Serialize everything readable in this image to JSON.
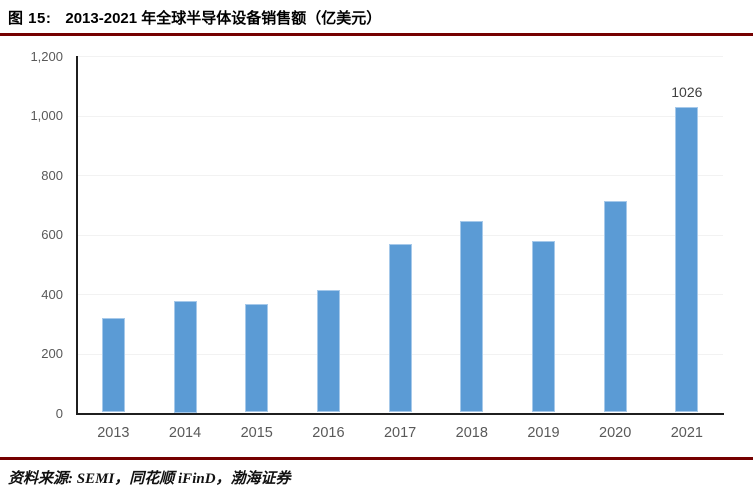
{
  "figure": {
    "label": "图 15:",
    "title": "2013-2021 年全球半导体设备销售额（亿美元）"
  },
  "source_note": "资料来源: SEMI，同花顺 iFinD，渤海证券",
  "colors": {
    "bar_fill": "#5b9bd5",
    "bar_edge": "#a6c9ea",
    "rule_red": "#750000",
    "axis_line": "#1f1f1f",
    "tick_label": "#595959",
    "data_label": "#404040"
  },
  "chart_data": {
    "type": "bar",
    "title": "2013-2021 年全球半导体设备销售额（亿美元）",
    "unit": "亿美元",
    "categories": [
      "2013",
      "2014",
      "2015",
      "2016",
      "2017",
      "2018",
      "2019",
      "2020",
      "2021"
    ],
    "values": [
      318,
      375,
      365,
      412,
      566,
      645,
      576,
      712,
      1026
    ],
    "annotations": [
      {
        "category": "2021",
        "text": "1026"
      }
    ],
    "xlabel": "",
    "ylabel": "",
    "ylim": [
      0,
      1200
    ],
    "ytick_interval": 200,
    "ytick_labels": [
      "0",
      "200",
      "400",
      "600",
      "800",
      "1,000",
      "1,200"
    ],
    "grid": "faint-horizontal",
    "legend_position": "none"
  }
}
